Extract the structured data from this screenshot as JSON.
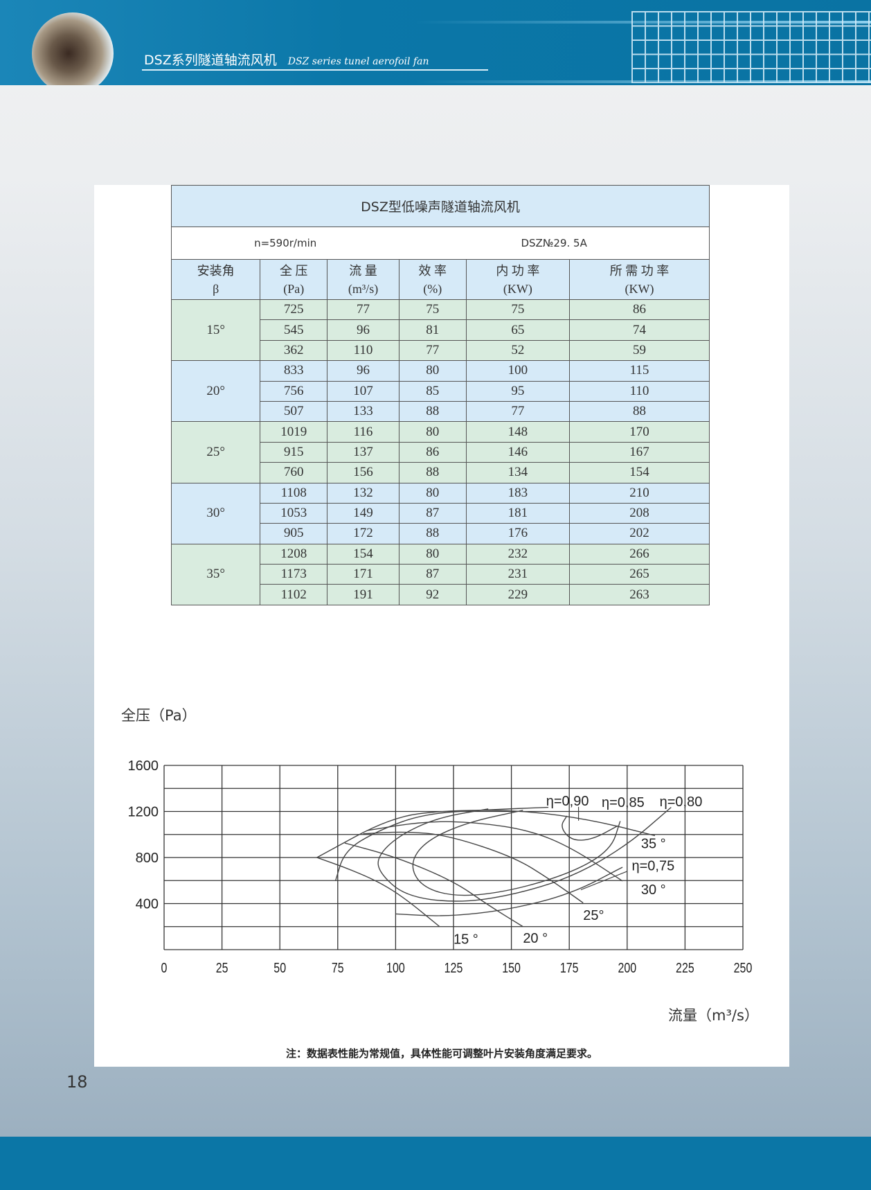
{
  "header": {
    "title_cn": "DSZ系列隧道轴流风机",
    "title_en": "DSZ series tunel aerofoil fan",
    "accent": "#0b76a6"
  },
  "table": {
    "title": "DSZ型低噪声隧道轴流风机",
    "speed": "n=590r/min",
    "model": "DSZ№29. 5A",
    "headers": [
      [
        "安装角",
        "β"
      ],
      [
        "全  压",
        "(Pa)"
      ],
      [
        "流  量",
        "(m³/s)"
      ],
      [
        "效  率",
        "(%)"
      ],
      [
        "内 功 率",
        "(KW)"
      ],
      [
        "所 需 功 率",
        "(KW)"
      ]
    ],
    "groups": [
      {
        "angle": "15°",
        "rows": [
          [
            "725",
            "77",
            "75",
            "75",
            "86"
          ],
          [
            "545",
            "96",
            "81",
            "65",
            "74"
          ],
          [
            "362",
            "110",
            "77",
            "52",
            "59"
          ]
        ]
      },
      {
        "angle": "20°",
        "rows": [
          [
            "833",
            "96",
            "80",
            "100",
            "115"
          ],
          [
            "756",
            "107",
            "85",
            "95",
            "110"
          ],
          [
            "507",
            "133",
            "88",
            "77",
            "88"
          ]
        ]
      },
      {
        "angle": "25°",
        "rows": [
          [
            "1019",
            "116",
            "80",
            "148",
            "170"
          ],
          [
            "915",
            "137",
            "86",
            "146",
            "167"
          ],
          [
            "760",
            "156",
            "88",
            "134",
            "154"
          ]
        ]
      },
      {
        "angle": "30°",
        "rows": [
          [
            "1108",
            "132",
            "80",
            "183",
            "210"
          ],
          [
            "1053",
            "149",
            "87",
            "181",
            "208"
          ],
          [
            "905",
            "172",
            "88",
            "176",
            "202"
          ]
        ]
      },
      {
        "angle": "35°",
        "rows": [
          [
            "1208",
            "154",
            "80",
            "232",
            "266"
          ],
          [
            "1173",
            "171",
            "87",
            "231",
            "265"
          ],
          [
            "1102",
            "191",
            "92",
            "229",
            "263"
          ]
        ]
      }
    ],
    "colors": {
      "header": "#d6eaf8",
      "green": "#d9ecdf",
      "blue": "#d6eaf8"
    }
  },
  "chart_data": {
    "type": "line",
    "ylabel": "全压（Pa）",
    "xlabel": "流量（m³/s）",
    "xlim": [
      0,
      250
    ],
    "ylim": [
      0,
      1600
    ],
    "xticks": [
      "0",
      "25",
      "50",
      "75",
      "100",
      "125",
      "150",
      "175",
      "200",
      "225",
      "250"
    ],
    "yticks": [
      "400",
      "800",
      "1200",
      "1600"
    ],
    "grid": true,
    "series": [
      {
        "name": "15°",
        "points": [
          [
            66,
            800
          ],
          [
            80,
            700
          ],
          [
            93,
            586
          ],
          [
            104,
            446
          ],
          [
            119,
            200
          ]
        ]
      },
      {
        "name": "20°",
        "points": [
          [
            78,
            926
          ],
          [
            100,
            806
          ],
          [
            125,
            596
          ],
          [
            140,
            386
          ],
          [
            155,
            200
          ]
        ]
      },
      {
        "name": "25°",
        "points": [
          [
            86,
            1006
          ],
          [
            104,
            1026
          ],
          [
            122,
            996
          ],
          [
            151,
            806
          ],
          [
            167,
            606
          ],
          [
            181,
            406
          ]
        ]
      },
      {
        "name": "30°",
        "points": [
          [
            88,
            1036
          ],
          [
            113,
            1116
          ],
          [
            135,
            1106
          ],
          [
            158,
            1036
          ],
          [
            176,
            886
          ],
          [
            198,
            596
          ]
        ]
      },
      {
        "name": "35°",
        "points": [
          [
            66,
            800
          ],
          [
            98,
            1150
          ],
          [
            122,
            1210
          ],
          [
            155,
            1210
          ],
          [
            185,
            1126
          ],
          [
            212,
            990
          ]
        ]
      },
      {
        "name": "η=0.75",
        "points": [
          [
            74,
            596
          ],
          [
            78,
            860
          ],
          [
            92,
            1030
          ],
          [
            112,
            1180
          ],
          [
            140,
            1215
          ],
          [
            166,
            1236
          ]
        ]
      },
      {
        "name": "η=0.75",
        "points": [
          [
            100,
            310
          ],
          [
            122,
            286
          ],
          [
            149,
            346
          ],
          [
            176,
            486
          ],
          [
            198,
            716
          ]
        ]
      },
      {
        "name": "η=0.80",
        "points": [
          [
            219,
            1236
          ],
          [
            200,
            906
          ],
          [
            176,
            626
          ],
          [
            149,
            466
          ],
          [
            126,
            406
          ],
          [
            104,
            466
          ],
          [
            93,
            666
          ],
          [
            92,
            806
          ],
          [
            101,
            986
          ],
          [
            118,
            1146
          ],
          [
            140,
            1222
          ]
        ]
      },
      {
        "name": "η=0.85",
        "points": [
          [
            197,
            1116
          ],
          [
            193,
            866
          ],
          [
            176,
            666
          ],
          [
            149,
            506
          ],
          [
            126,
            456
          ],
          [
            111,
            546
          ],
          [
            106,
            746
          ],
          [
            113,
            946
          ],
          [
            131,
            1106
          ],
          [
            155,
            1210
          ]
        ]
      },
      {
        "name": "η=0.90",
        "points": [
          [
            174,
            1162
          ],
          [
            171,
            1066
          ],
          [
            176,
            946
          ],
          [
            185,
            956
          ],
          [
            196,
            1076
          ]
        ]
      }
    ],
    "annotations": [
      {
        "text": "η=0,90",
        "x": 165,
        "y": 1250
      },
      {
        "text": "η=0,85",
        "x": 189,
        "y": 1240
      },
      {
        "text": "η=0,80",
        "x": 214,
        "y": 1245
      },
      {
        "text": "35 °",
        "x": 206,
        "y": 880
      },
      {
        "text": "η=0,75",
        "x": 202,
        "y": 690
      },
      {
        "text": "30 °",
        "x": 206,
        "y": 480
      },
      {
        "text": "25°",
        "x": 181,
        "y": 260
      },
      {
        "text": "15 °",
        "x": 125,
        "y": 50
      },
      {
        "text": "20 °",
        "x": 155,
        "y": 60
      }
    ]
  },
  "note": "注：数据表性能为常规值，具体性能可调整叶片安装角度满足要求。",
  "page_number": "18"
}
